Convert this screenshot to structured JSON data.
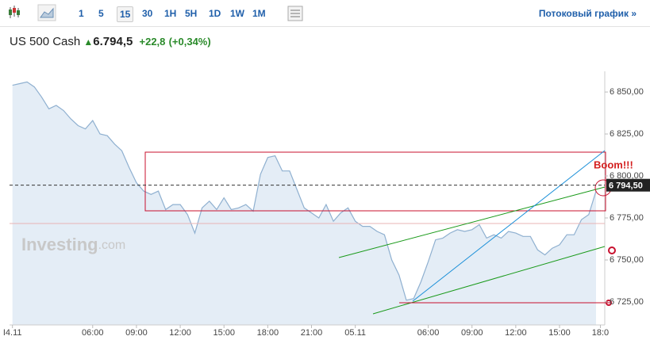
{
  "toolbar": {
    "timeframes": [
      "1",
      "5",
      "15",
      "30",
      "1H",
      "5H",
      "1D",
      "1W",
      "1M"
    ],
    "active": "15",
    "link": "Потоковый график »"
  },
  "header": {
    "instrument": "US 500 Cash",
    "price": "6.794,5",
    "change": "+22,8",
    "change_pct": "(+0,34%)"
  },
  "chart_data": {
    "type": "area",
    "watermark": "Investing",
    "watermark_suffix": ".com",
    "annotation": "Boom!!!",
    "color": "#8fb0d0",
    "fill": "#e4edf6",
    "grid": false,
    "x": [
      0.5,
      1,
      1.5,
      2,
      2.5,
      3,
      3.5,
      4,
      4.5,
      5,
      5.5,
      6,
      6.5,
      7,
      7.5,
      8,
      8.5,
      9,
      9.5,
      10,
      10.5,
      11,
      11.5,
      12,
      12.5,
      13,
      13.5,
      14,
      14.5,
      15,
      15.5,
      16,
      16.5,
      17,
      17.5,
      18,
      18.5,
      19,
      19.5,
      20,
      20.5,
      21,
      21.5,
      22,
      22.5,
      23,
      23.5,
      24,
      24.5,
      25,
      25.5,
      26,
      26.5,
      27,
      27.5,
      28,
      28.5,
      29,
      29.5,
      30,
      30.5,
      31,
      31.5,
      32,
      32.5,
      33,
      33.5,
      34,
      34.5,
      35,
      35.5,
      36,
      36.5,
      37,
      37.5,
      38,
      38.5,
      39,
      39.5,
      40,
      40.5
    ],
    "values": [
      6854,
      6855,
      6856,
      6853,
      6847,
      6840,
      6842,
      6839,
      6834,
      6830,
      6828,
      6833,
      6825,
      6824,
      6819,
      6815,
      6805,
      6796,
      6791,
      6789,
      6791,
      6780,
      6783,
      6783,
      6777,
      6766,
      6781,
      6785,
      6780,
      6787,
      6780,
      6781,
      6783,
      6779,
      6801,
      6811,
      6812,
      6803,
      6803,
      6792,
      6781,
      6778,
      6775,
      6783,
      6773,
      6778,
      6781,
      6773,
      6770,
      6770,
      6767,
      6765,
      6750,
      6741,
      6726,
      6727,
      6737,
      6749,
      6762,
      6763,
      6766,
      6768,
      6767,
      6768,
      6771,
      6763,
      6765,
      6763,
      6767,
      6766,
      6764,
      6764,
      6756,
      6753,
      6757,
      6759,
      6765,
      6765,
      6774,
      6777,
      6791
    ],
    "xlim": [
      0.3,
      41.1
    ],
    "ylim": [
      6711.3,
      6862.3
    ],
    "xticks": [
      {
        "value": 0.5,
        "label": "I4.11"
      },
      {
        "value": 6,
        "label": "06:00"
      },
      {
        "value": 9,
        "label": "09:00"
      },
      {
        "value": 12,
        "label": "12:00"
      },
      {
        "value": 15,
        "label": "15:00"
      },
      {
        "value": 18,
        "label": "18:00"
      },
      {
        "value": 21,
        "label": "21:00"
      },
      {
        "value": 24,
        "label": "05.11"
      },
      {
        "value": 29,
        "label": "06:00"
      },
      {
        "value": 32,
        "label": "09:00"
      },
      {
        "value": 35,
        "label": "12:00"
      },
      {
        "value": 38,
        "label": "15:00"
      },
      {
        "value": 40.8,
        "label": "18:0"
      }
    ],
    "yticks": [
      {
        "value": 6850,
        "label": "6 850,00"
      },
      {
        "value": 6825,
        "label": "6 825,00"
      },
      {
        "value": 6800,
        "label": "6 800,00"
      },
      {
        "value": 6775,
        "label": "6 775,00"
      },
      {
        "value": 6750,
        "label": "6 750,00"
      },
      {
        "value": 6725,
        "label": "6 725,00"
      }
    ],
    "last_price": {
      "value": 6794.5,
      "label": "6 794,50"
    },
    "prev_close": 6771.7
  }
}
